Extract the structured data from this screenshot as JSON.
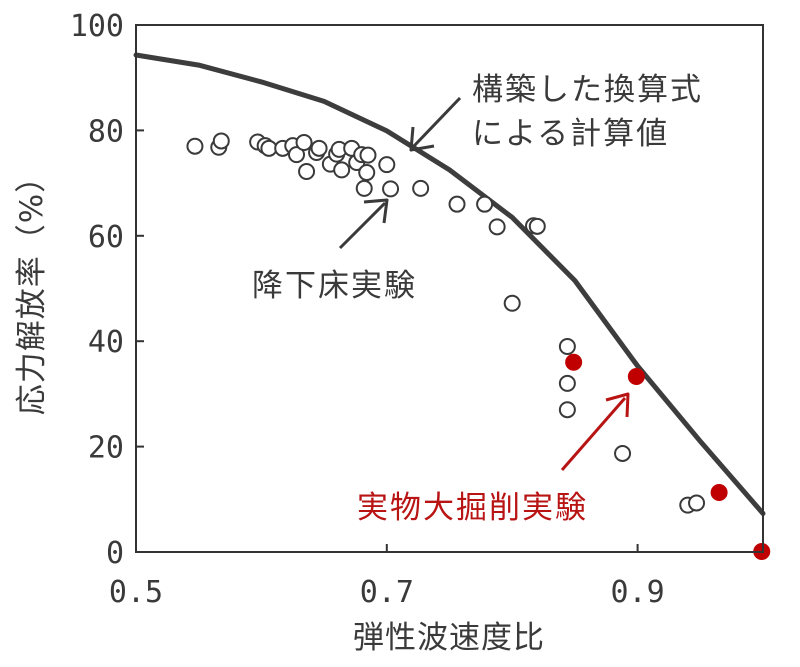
{
  "chart_data": {
    "type": "scatter",
    "xlabel": "弾性波速度比",
    "ylabel": "応力解放率（%）",
    "xlim": [
      0.5,
      1.0
    ],
    "ylim": [
      0,
      100
    ],
    "xticks": [
      "0.5",
      "0.7",
      "0.9"
    ],
    "yticks": [
      "0",
      "20",
      "40",
      "60",
      "80",
      "100"
    ],
    "grid": false,
    "colors": {
      "curve": "#3d3d3d",
      "open": "#3a3a3a",
      "red": "#c00000",
      "red_text": "#b81414"
    },
    "series": [
      {
        "name": "降下床実験",
        "marker": "open-circle",
        "points": [
          [
            0.547,
            77.0
          ],
          [
            0.566,
            76.8
          ],
          [
            0.568,
            78.0
          ],
          [
            0.597,
            77.8
          ],
          [
            0.603,
            77.1
          ],
          [
            0.606,
            76.6
          ],
          [
            0.617,
            76.6
          ],
          [
            0.625,
            77.1
          ],
          [
            0.628,
            75.4
          ],
          [
            0.634,
            77.7
          ],
          [
            0.636,
            72.2
          ],
          [
            0.644,
            75.8
          ],
          [
            0.646,
            76.6
          ],
          [
            0.655,
            73.6
          ],
          [
            0.66,
            75.5
          ],
          [
            0.662,
            76.4
          ],
          [
            0.664,
            72.5
          ],
          [
            0.672,
            76.6
          ],
          [
            0.676,
            73.9
          ],
          [
            0.68,
            75.4
          ],
          [
            0.682,
            69.0
          ],
          [
            0.684,
            72.0
          ],
          [
            0.685,
            75.3
          ],
          [
            0.7,
            73.5
          ],
          [
            0.703,
            68.9
          ],
          [
            0.727,
            69.0
          ],
          [
            0.756,
            66.0
          ],
          [
            0.778,
            66.0
          ],
          [
            0.788,
            61.7
          ],
          [
            0.8,
            47.2
          ],
          [
            0.817,
            61.9
          ],
          [
            0.82,
            61.8
          ],
          [
            0.844,
            39.0
          ],
          [
            0.844,
            32.0
          ],
          [
            0.844,
            27.0
          ],
          [
            0.888,
            18.7
          ],
          [
            0.94,
            8.9
          ],
          [
            0.947,
            9.3
          ]
        ]
      },
      {
        "name": "実物大掘削実験",
        "marker": "filled-circle",
        "points": [
          [
            0.849,
            36.0
          ],
          [
            0.899,
            33.3
          ],
          [
            0.965,
            11.3
          ],
          [
            0.999,
            0.1
          ]
        ]
      },
      {
        "name": "構築した換算式による計算値",
        "marker": "line",
        "points": [
          [
            0.5,
            94.3
          ],
          [
            0.55,
            92.4
          ],
          [
            0.6,
            89.2
          ],
          [
            0.65,
            85.5
          ],
          [
            0.7,
            79.9
          ],
          [
            0.75,
            72.5
          ],
          [
            0.8,
            63.5
          ],
          [
            0.85,
            51.5
          ],
          [
            0.9,
            35.3
          ],
          [
            0.95,
            21.0
          ],
          [
            1.0,
            7.3
          ]
        ]
      }
    ],
    "annotations": {
      "curve_label_line1": "構築した換算式",
      "curve_label_line2": "による計算値",
      "lab_label": "降下床実験",
      "field_label": "実物大掘削実験"
    }
  }
}
